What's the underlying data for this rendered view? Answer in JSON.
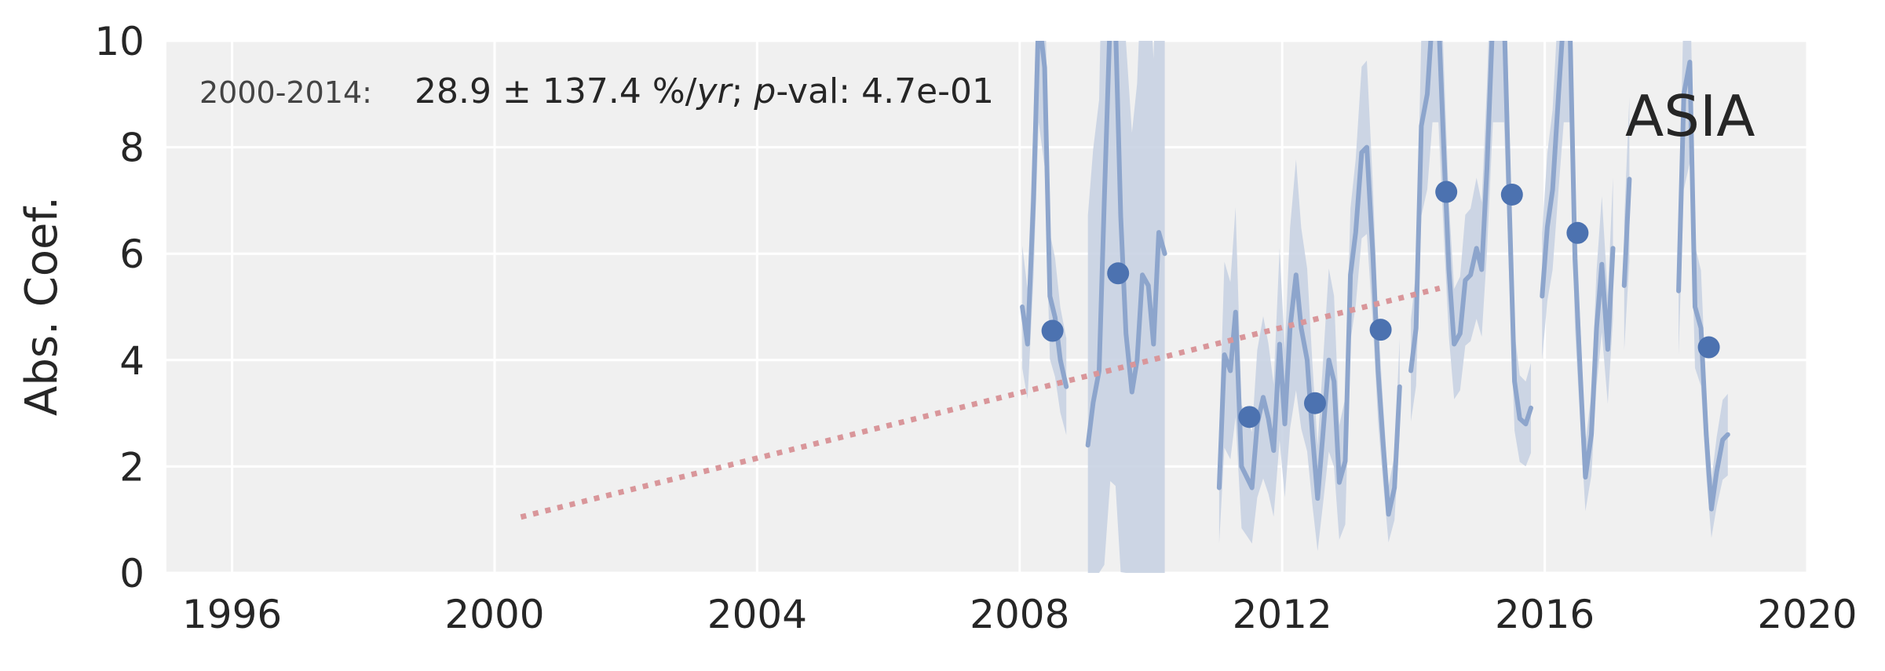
{
  "chart_data": {
    "type": "line",
    "title": "",
    "xlabel": "",
    "ylabel": "Abs. Coef.",
    "xlim": [
      1995,
      2020
    ],
    "ylim": [
      0,
      10
    ],
    "xticks": [
      1996,
      2000,
      2004,
      2008,
      2012,
      2016,
      2020
    ],
    "yticks": [
      0,
      2,
      4,
      6,
      8,
      10
    ],
    "grid": true,
    "region_label": "ASIA",
    "trend_stats": {
      "period": "2000-2014:",
      "slope": "28.9",
      "pm": "±",
      "uncertainty": "137.4",
      "unit_prefix": "%/",
      "unit_italic": "yr",
      "sep": ";",
      "p_italic": "p",
      "p_label": "-val: 4.7e-01"
    },
    "colors": {
      "background": "#f0f0f0",
      "grid": "#ffffff",
      "monthly_line": "#8da5cc",
      "band": "#c5d0e2",
      "annual_points": "#4c72b0",
      "trend": "#d9969a"
    },
    "series": [
      {
        "kind": "monthly",
        "segments": [
          [
            [
              2008.04,
              5.0
            ],
            [
              2008.12,
              4.3
            ],
            [
              2008.21,
              7.0
            ],
            [
              2008.29,
              10.5
            ],
            [
              2008.38,
              9.5
            ],
            [
              2008.46,
              5.2
            ],
            [
              2008.54,
              4.8
            ],
            [
              2008.62,
              4.0
            ],
            [
              2008.71,
              3.5
            ]
          ],
          [
            [
              2009.04,
              2.4
            ],
            [
              2009.12,
              3.2
            ],
            [
              2009.21,
              3.8
            ],
            [
              2009.29,
              7.0
            ],
            [
              2009.38,
              10.5
            ],
            [
              2009.46,
              10.3
            ],
            [
              2009.54,
              6.7
            ],
            [
              2009.62,
              4.5
            ],
            [
              2009.71,
              3.4
            ],
            [
              2009.79,
              4.0
            ],
            [
              2009.87,
              5.6
            ],
            [
              2009.96,
              5.4
            ],
            [
              2010.04,
              4.3
            ],
            [
              2010.12,
              6.4
            ],
            [
              2010.21,
              6.0
            ]
          ],
          [
            [
              2011.04,
              1.6
            ],
            [
              2011.12,
              4.1
            ],
            [
              2011.21,
              3.8
            ],
            [
              2011.29,
              4.9
            ],
            [
              2011.38,
              2.0
            ],
            [
              2011.46,
              1.8
            ],
            [
              2011.54,
              1.6
            ],
            [
              2011.62,
              2.8
            ],
            [
              2011.71,
              3.3
            ],
            [
              2011.79,
              2.9
            ],
            [
              2011.87,
              2.3
            ],
            [
              2011.96,
              4.3
            ],
            [
              2012.04,
              2.8
            ],
            [
              2012.12,
              4.6
            ],
            [
              2012.21,
              5.6
            ],
            [
              2012.29,
              4.6
            ],
            [
              2012.38,
              4.0
            ],
            [
              2012.46,
              2.6
            ],
            [
              2012.54,
              1.4
            ],
            [
              2012.62,
              2.6
            ],
            [
              2012.71,
              4.0
            ],
            [
              2012.79,
              3.6
            ],
            [
              2012.87,
              1.7
            ],
            [
              2012.96,
              2.1
            ],
            [
              2013.04,
              5.6
            ],
            [
              2013.12,
              6.4
            ],
            [
              2013.21,
              7.9
            ],
            [
              2013.29,
              8.0
            ],
            [
              2013.38,
              6.0
            ],
            [
              2013.46,
              3.8
            ],
            [
              2013.54,
              2.4
            ],
            [
              2013.62,
              1.1
            ],
            [
              2013.71,
              1.6
            ],
            [
              2013.79,
              3.5
            ]
          ],
          [
            [
              2013.96,
              3.8
            ],
            [
              2014.04,
              4.6
            ],
            [
              2014.12,
              8.4
            ],
            [
              2014.21,
              9.0
            ],
            [
              2014.29,
              10.5
            ],
            [
              2014.38,
              10.5
            ],
            [
              2014.46,
              8.0
            ],
            [
              2014.54,
              5.7
            ],
            [
              2014.62,
              4.3
            ],
            [
              2014.71,
              4.5
            ],
            [
              2014.79,
              5.5
            ],
            [
              2014.87,
              5.6
            ],
            [
              2014.96,
              6.1
            ],
            [
              2015.04,
              5.7
            ],
            [
              2015.12,
              7.6
            ],
            [
              2015.21,
              10.5
            ],
            [
              2015.29,
              10.5
            ],
            [
              2015.38,
              10.5
            ],
            [
              2015.46,
              6.9
            ],
            [
              2015.54,
              3.6
            ],
            [
              2015.62,
              2.9
            ],
            [
              2015.71,
              2.8
            ],
            [
              2015.79,
              3.1
            ]
          ],
          [
            [
              2015.96,
              5.2
            ],
            [
              2016.04,
              6.5
            ],
            [
              2016.12,
              7.2
            ],
            [
              2016.21,
              9.0
            ],
            [
              2016.29,
              10.5
            ],
            [
              2016.38,
              10.5
            ],
            [
              2016.46,
              5.9
            ],
            [
              2016.54,
              3.8
            ],
            [
              2016.62,
              1.8
            ],
            [
              2016.71,
              2.6
            ],
            [
              2016.79,
              4.6
            ],
            [
              2016.87,
              5.8
            ],
            [
              2016.96,
              4.2
            ],
            [
              2017.04,
              6.1
            ]
          ],
          [
            [
              2017.21,
              5.4
            ],
            [
              2017.29,
              7.4
            ]
          ],
          [
            [
              2018.04,
              5.3
            ],
            [
              2018.12,
              9.0
            ],
            [
              2018.21,
              9.6
            ],
            [
              2018.29,
              5.0
            ],
            [
              2018.38,
              4.6
            ],
            [
              2018.46,
              2.6
            ],
            [
              2018.54,
              1.2
            ],
            [
              2018.62,
              1.9
            ],
            [
              2018.71,
              2.5
            ],
            [
              2018.79,
              2.6
            ]
          ]
        ]
      },
      {
        "kind": "annual",
        "x": [
          2008.5,
          2009.5,
          2011.5,
          2012.5,
          2013.5,
          2014.5,
          2015.5,
          2016.5,
          2018.5
        ],
        "y": [
          4.55,
          5.63,
          2.93,
          3.19,
          4.57,
          7.16,
          7.11,
          6.39,
          4.24
        ]
      },
      {
        "kind": "trend",
        "x": [
          2000.4,
          2014.4
        ],
        "y": [
          1.05,
          5.35
        ]
      }
    ]
  }
}
